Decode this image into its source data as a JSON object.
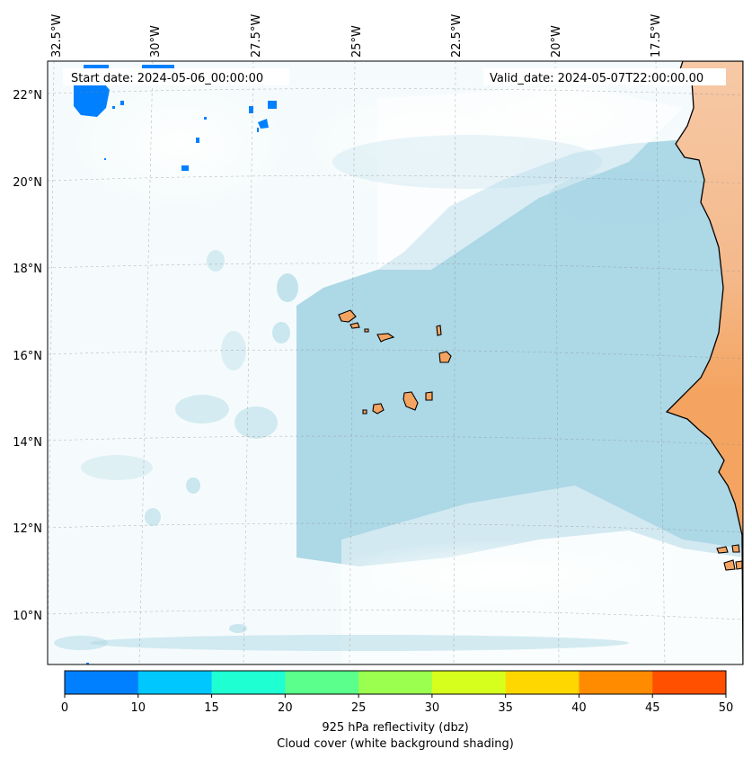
{
  "map": {
    "lon_labels": [
      "32.5°W",
      "30°W",
      "27.5°W",
      "25°W",
      "22.5°W",
      "20°W",
      "17.5°W"
    ],
    "lat_labels": [
      "22°N",
      "20°N",
      "18°N",
      "16°N",
      "14°N",
      "12°N",
      "10°N"
    ],
    "start_date": "Start date: 2024-05-06_00:00:00",
    "valid_date": "Valid_date: 2024-05-07T22:00:00.00"
  },
  "colorbar": {
    "ticks": [
      "0",
      "10",
      "15",
      "20",
      "25",
      "30",
      "35",
      "40",
      "45",
      "50"
    ],
    "colors": [
      "#0080ff",
      "#00c8ff",
      "#1effd2",
      "#5aff8c",
      "#9bff50",
      "#d7ff1e",
      "#ffd700",
      "#ff8c00",
      "#ff5000"
    ],
    "label_line1": "925 hPa reflectivity (dbz)",
    "label_line2": "Cloud cover (white background shading)"
  },
  "colors": {
    "ocean_cloud": "#add8e6",
    "land": "#f4a460",
    "echo": "#0080ff"
  }
}
